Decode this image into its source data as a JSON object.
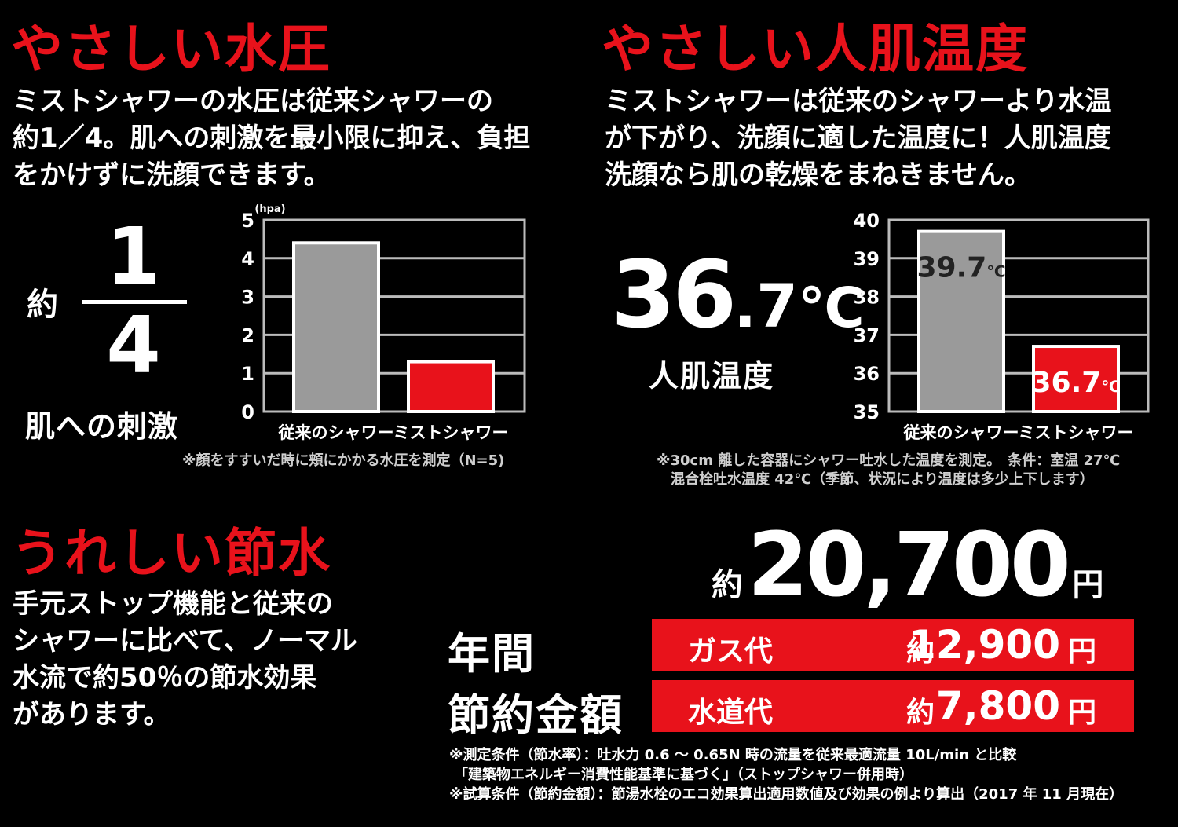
{
  "pressure": {
    "heading": "やさしい水圧",
    "lines": [
      "ミストシャワーの水圧は従来シャワーの",
      "約1／4。肌への刺激を最小限に抑え、負担",
      "をかけずに洗顔できます。"
    ],
    "about": "約",
    "frac_num": "1",
    "frac_den": "4",
    "caption": "肌への刺激",
    "note": "※顔をすすいだ時に頬にかかる水圧を測定（N=5)"
  },
  "temperature": {
    "heading": "やさしい人肌温度",
    "lines": [
      "ミストシャワーは従来のシャワーより水温",
      "が下がり、洗顔に適した温度に！人肌温度",
      "洗顔なら肌の乾燥をまねきません。"
    ],
    "big_int": "36",
    "big_dec": ".7",
    "big_unit": "℃",
    "caption": "人肌温度",
    "note1": "※30cm 離した容器にシャワー吐水した温度を測定。　条件：室温 27℃",
    "note2": "混合栓吐水温度 42℃（季節、状況により温度は多少上下します）"
  },
  "saving": {
    "heading": "うれしい節水",
    "lines": [
      "手元ストップ機能と従来の",
      "シャワーに比べて、ノーマル",
      "水流で約50％の節水効果",
      "があります。"
    ],
    "label1": "年間",
    "label2": "節約金額",
    "total_about": "約",
    "total_value": "20,700",
    "total_unit": "円",
    "rows": [
      {
        "name": "ガス代",
        "about": "約",
        "value": "12,900",
        "unit": "円"
      },
      {
        "name": "水道代",
        "about": "約",
        "value": "7,800",
        "unit": "円"
      }
    ],
    "notes": [
      "※測定条件（節水率）：吐水力 0.6 ～ 0.65N 時の流量を従来最適流量 10L/min と比較",
      "「建築物エネルギー消費性能基準に基づく」（ストップシャワー併用時）",
      "※試算条件（節約金額）：節湯水栓のエコ効果算出適用数値及び効果の例より算出（2017 年 11 月現在）"
    ]
  },
  "chart_data": [
    {
      "type": "bar",
      "unit": "(hpa)",
      "categories": [
        "従来のシャワー",
        "ミストシャワー"
      ],
      "values": [
        4.4,
        1.3
      ],
      "colors": [
        "#9a9a9a",
        "#e8121b"
      ],
      "yticks": [
        "0",
        "1",
        "2",
        "3",
        "4",
        "5"
      ],
      "ylim": [
        0,
        5
      ],
      "grid": true
    },
    {
      "type": "bar",
      "categories": [
        "従来のシャワー",
        "ミストシャワー"
      ],
      "values": [
        39.7,
        36.7
      ],
      "value_labels": [
        "39.7",
        "36.7"
      ],
      "value_unit": "℃",
      "colors": [
        "#9a9a9a",
        "#e8121b"
      ],
      "yticks": [
        "35",
        "36",
        "37",
        "38",
        "39",
        "40"
      ],
      "ylim": [
        35,
        40
      ],
      "grid": true
    }
  ]
}
